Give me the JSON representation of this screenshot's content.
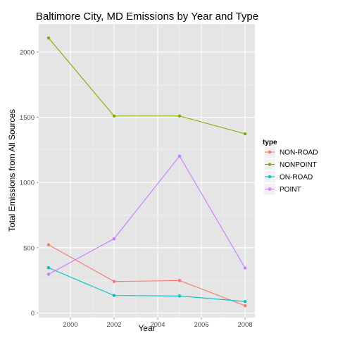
{
  "chart_data": {
    "type": "line",
    "title": "Baltimore City, MD Emissions by Year and Type",
    "xlabel": "Year",
    "ylabel": "Total Emissions from All Sources",
    "x": [
      1999,
      2002,
      2005,
      2008
    ],
    "xlim": [
      1998.55,
      2008.45
    ],
    "ylim": [
      -35,
      2215
    ],
    "xticks": [
      2000,
      2002,
      2004,
      2006,
      2008
    ],
    "yticks": [
      0,
      500,
      1000,
      1500,
      2000
    ],
    "grid": true,
    "legend": {
      "title": "type",
      "position": "right"
    },
    "series": [
      {
        "name": "NON-ROAD",
        "color": "#F8766D",
        "values": [
          522.94,
          242.11,
          248.93,
          55.82
        ]
      },
      {
        "name": "NONPOINT",
        "color": "#7CAE00",
        "values": [
          2107.63,
          1509.5,
          1509.5,
          1373.21
        ]
      },
      {
        "name": "ON-ROAD",
        "color": "#00BFC4",
        "values": [
          346.82,
          134.31,
          130.43,
          88.28
        ]
      },
      {
        "name": "POINT",
        "color": "#C77CFF",
        "values": [
          296.8,
          569.26,
          1202.49,
          344.98
        ]
      }
    ]
  }
}
